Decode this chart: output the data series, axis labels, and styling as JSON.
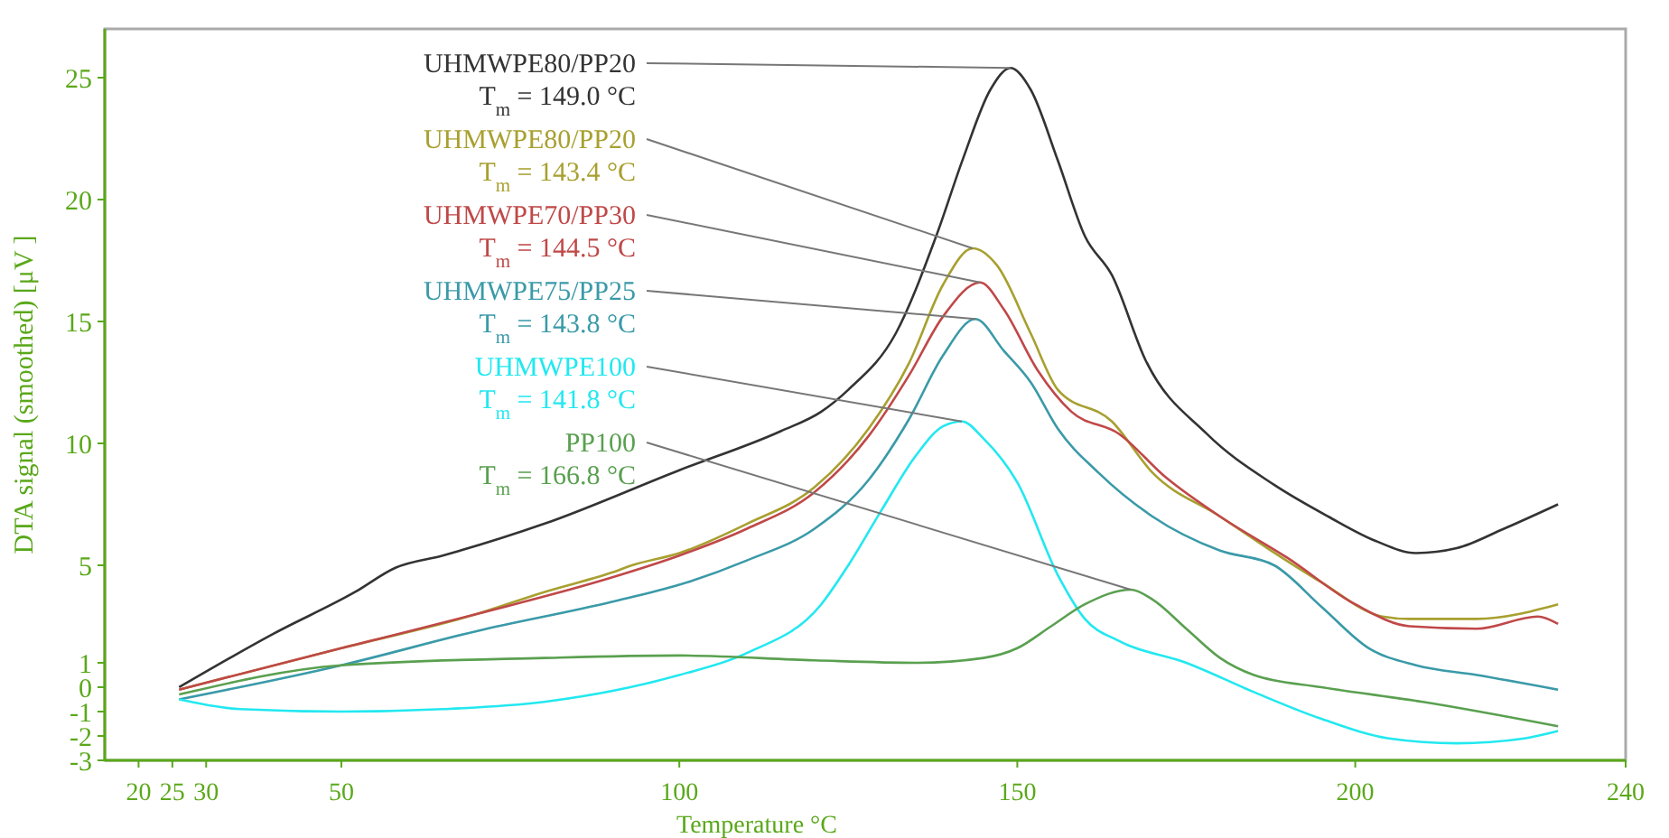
{
  "chart_data": {
    "type": "line",
    "xlabel": "Temperature °C",
    "ylabel": "DTA signal (smoothed) [μV ]",
    "xlim": [
      15,
      240
    ],
    "xticks": [
      20,
      25,
      30,
      50,
      100,
      150,
      200,
      240
    ],
    "ylim": [
      -3,
      27
    ],
    "yticks": [
      -3,
      -2,
      -1,
      0,
      1,
      5,
      10,
      15,
      20,
      25
    ],
    "grid": false,
    "marker": "none",
    "line_style": "solid",
    "series": [
      {
        "name": "UHMWPE80/PP20",
        "color": "#333333",
        "x": [
          26,
          40,
          52,
          58,
          65,
          80,
          100,
          115,
          121,
          125,
          132,
          138,
          142,
          146,
          149,
          152,
          156,
          160,
          164,
          169,
          178,
          188,
          196,
          203,
          209,
          215,
          222,
          230
        ],
        "values": [
          0,
          2.2,
          3.9,
          4.9,
          5.4,
          6.7,
          8.9,
          10.5,
          11.3,
          12.2,
          14.5,
          18.5,
          21.7,
          24.5,
          25.4,
          24.5,
          21.6,
          18.5,
          16.9,
          13.4,
          10.4,
          8.3,
          7,
          6,
          5.5,
          5.7,
          6.5,
          7.5
        ]
      },
      {
        "name": "UHMWPE80/PP20",
        "color": "#a8a030",
        "x": [
          26,
          50,
          70,
          80,
          90,
          93,
          100,
          110,
          120,
          128,
          134,
          139,
          143.4,
          147,
          152,
          156,
          164,
          170,
          180,
          187,
          195,
          204,
          208,
          218,
          230
        ],
        "values": [
          -0.1,
          1.6,
          3.0,
          3.9,
          4.7,
          5.0,
          5.5,
          6.7,
          8.2,
          10.6,
          13.3,
          16.5,
          18.0,
          17.3,
          14.5,
          12.2,
          10.9,
          8.8,
          7.0,
          5.7,
          4.3,
          2.9,
          2.8,
          2.8,
          3.4
        ]
      },
      {
        "name": "UHMWPE70/PP30",
        "color": "#c04848",
        "x": [
          26,
          50,
          70,
          90,
          100,
          110,
          120,
          128,
          134,
          139,
          144.5,
          148,
          153,
          158,
          165,
          172,
          180,
          190,
          200,
          208,
          218,
          227,
          230
        ],
        "values": [
          -0.1,
          1.6,
          3.0,
          4.5,
          5.4,
          6.5,
          8.0,
          10.3,
          12.8,
          15.2,
          16.6,
          15.5,
          13.0,
          11.3,
          10.4,
          8.6,
          7.0,
          5.3,
          3.4,
          2.5,
          2.4,
          2.9,
          2.6
        ]
      },
      {
        "name": "UHMWPE75/PP25",
        "color": "#3a9aa8",
        "x": [
          26,
          50,
          70,
          90,
          100,
          110,
          120,
          128,
          134,
          139,
          143.8,
          148,
          152,
          156,
          162,
          170,
          180,
          188,
          195,
          202,
          209,
          218,
          230
        ],
        "values": [
          -0.5,
          0.9,
          2.3,
          3.5,
          4.2,
          5.2,
          6.5,
          8.5,
          11,
          13.6,
          15.1,
          13.8,
          12.5,
          10.6,
          8.8,
          7.0,
          5.6,
          5.0,
          3.3,
          1.6,
          0.9,
          0.5,
          -0.1
        ]
      },
      {
        "name": "UHMWPE100",
        "color": "#22e8f0",
        "x": [
          26,
          35,
          50,
          65,
          80,
          100,
          110,
          121,
          125,
          130,
          135,
          139,
          141.8,
          145,
          150,
          156,
          160,
          165,
          175,
          185,
          195,
          205,
          215,
          225,
          230
        ],
        "values": [
          -0.5,
          -0.9,
          -1.0,
          -0.9,
          -0.6,
          0.5,
          1.4,
          3.4,
          5.0,
          7.3,
          9.5,
          10.7,
          10.9,
          10.2,
          8.4,
          4.6,
          2.8,
          1.9,
          1.0,
          -0.2,
          -1.3,
          -2.1,
          -2.3,
          -2.1,
          -1.8
        ]
      },
      {
        "name": "PP100",
        "color": "#5aa050",
        "x": [
          26,
          50,
          80,
          100,
          120,
          135,
          145,
          150,
          155,
          160,
          166.8,
          170,
          175,
          180,
          185,
          195,
          210,
          230
        ],
        "values": [
          -0.3,
          0.9,
          1.2,
          1.3,
          1.1,
          1.0,
          1.2,
          1.6,
          2.5,
          3.4,
          4.0,
          3.6,
          2.4,
          1.2,
          0.5,
          0.0,
          -0.6,
          -1.6
        ]
      }
    ],
    "annotations": [
      {
        "text": "T$_{m}$ = 149.0 °C",
        "x": 149,
        "y": 25.4
      },
      {
        "text": "T$_{m}$ = 143.4 °C",
        "x": 143.4,
        "y": 18.0
      },
      {
        "text": "T$_{m}$ = 144.5 °C",
        "x": 144.5,
        "y": 16.6
      },
      {
        "text": "T$_{m}$ = 143.8 °C",
        "x": 143.8,
        "y": 15.1
      },
      {
        "text": "T$_{m}$ = 141.8 °C",
        "x": 141.8,
        "y": 10.9
      },
      {
        "text": "T$_{m}$ = 166.8 °C",
        "x": 166.8,
        "y": 4.0
      }
    ]
  }
}
